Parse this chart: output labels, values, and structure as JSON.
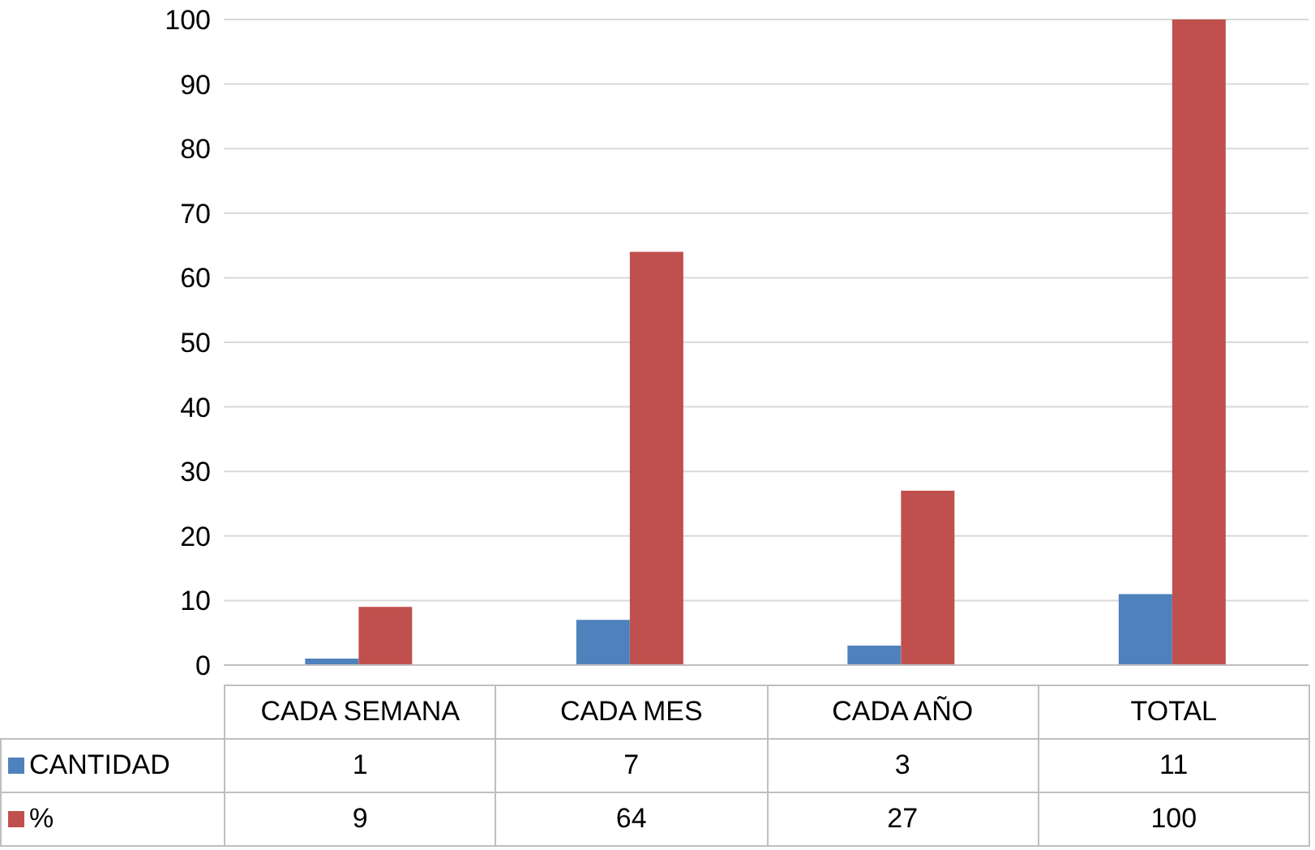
{
  "chart_data": {
    "type": "bar",
    "categories": [
      "CADA SEMANA",
      "CADA MES",
      "CADA AÑO",
      "TOTAL"
    ],
    "series": [
      {
        "name": "CANTIDAD",
        "color": "#4f81bd",
        "values": [
          1,
          7,
          3,
          11
        ]
      },
      {
        "name": "%",
        "color": "#c0504d",
        "values": [
          9,
          64,
          27,
          100
        ]
      }
    ],
    "ylim": [
      0,
      100
    ],
    "yticks": [
      0,
      10,
      20,
      30,
      40,
      50,
      60,
      70,
      80,
      90,
      100
    ],
    "grid": "y",
    "legend": "bottom left",
    "data_labels": true
  }
}
